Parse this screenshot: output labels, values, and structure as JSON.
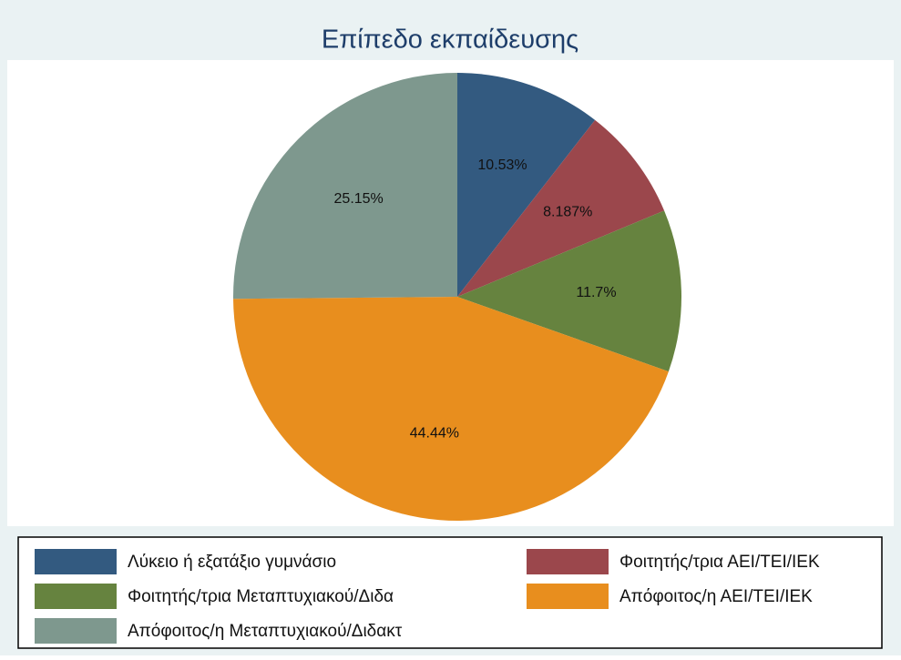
{
  "chart_data": {
    "type": "pie",
    "title": "Επίπεδο εκπαίδευσης",
    "categories": [
      "Λύκειο ή εξατάξιο γυμνάσιο",
      "Φοιτητής/τρια ΑΕΙ/ΤΕΙ/ΙΕΚ",
      "Φοιτητής/τρια Μεταπτυχιακού/Διδα",
      "Απόφοιτος/η ΑΕΙ/ΤΕΙ/ΙΕΚ",
      "Απόφοιτος/η Μεταπτυχιακού/Διδακτ"
    ],
    "values": [
      10.53,
      8.187,
      11.7,
      44.44,
      25.15
    ],
    "value_labels": [
      "10.53%",
      "8.187%",
      "11.7%",
      "44.44%",
      "25.15%"
    ],
    "colors": [
      "#335a80",
      "#9b474c",
      "#66833f",
      "#e88e1e",
      "#7e988e"
    ],
    "legend": "bottom"
  }
}
